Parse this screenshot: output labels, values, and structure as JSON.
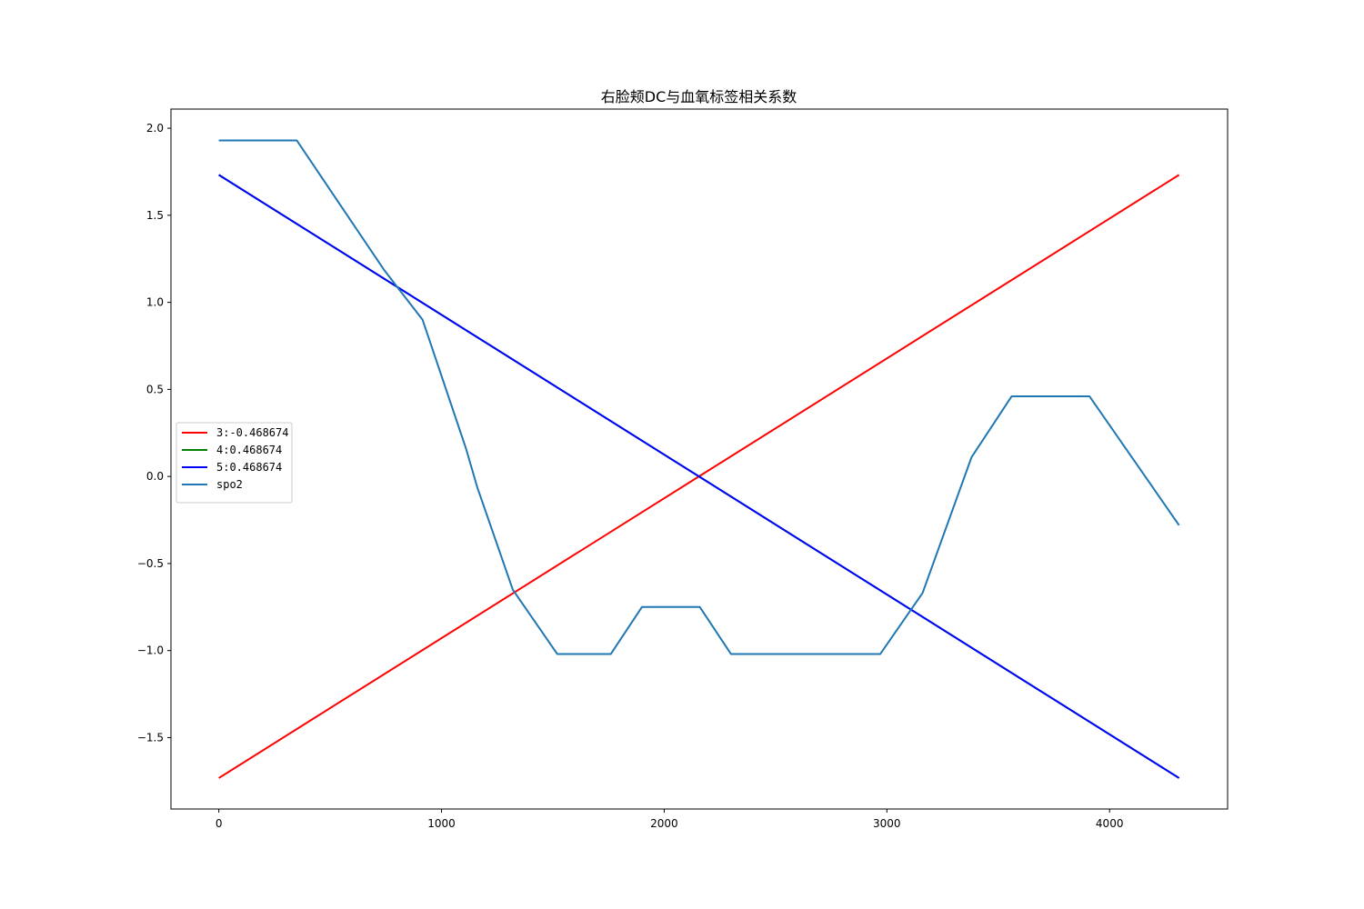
{
  "chart_data": {
    "type": "line",
    "title": "右脸颊DC与血氧标签相关系数",
    "xlabel": "",
    "ylabel": "",
    "xlim": [
      -215,
      4530
    ],
    "ylim": [
      -1.91,
      2.11
    ],
    "xticks": [
      0,
      1000,
      2000,
      3000,
      4000
    ],
    "xtick_labels": [
      "0",
      "1000",
      "2000",
      "3000",
      "4000"
    ],
    "yticks": [
      -1.5,
      -1.0,
      -0.5,
      0.0,
      0.5,
      1.0,
      1.5,
      2.0
    ],
    "ytick_labels": [
      "−1.5",
      "−1.0",
      "−0.5",
      "0.0",
      "0.5",
      "1.0",
      "1.5",
      "2.0"
    ],
    "grid": false,
    "legend_position": "center-left",
    "series": [
      {
        "name": "3:-0.468674",
        "color": "#ff0000",
        "x": [
          0,
          4312
        ],
        "y": [
          -1.732,
          1.732
        ]
      },
      {
        "name": "4:0.468674",
        "color": "#008000",
        "x": [
          0,
          4312
        ],
        "y": [
          1.732,
          -1.732
        ]
      },
      {
        "name": "5:0.468674",
        "color": "#0000ff",
        "x": [
          0,
          4312
        ],
        "y": [
          1.732,
          -1.732
        ]
      },
      {
        "name": "spo2",
        "color": "#1f77b4",
        "x": [
          0,
          350,
          740,
          800,
          915,
          1110,
          1160,
          1320,
          1520,
          1760,
          1900,
          2160,
          2300,
          2970,
          3160,
          3380,
          3560,
          3910,
          4312
        ],
        "y": [
          1.93,
          1.93,
          1.19,
          1.09,
          0.9,
          0.16,
          -0.06,
          -0.65,
          -1.02,
          -1.02,
          -0.75,
          -0.75,
          -1.02,
          -1.02,
          -0.67,
          0.11,
          0.46,
          0.46,
          -0.28
        ]
      }
    ]
  }
}
